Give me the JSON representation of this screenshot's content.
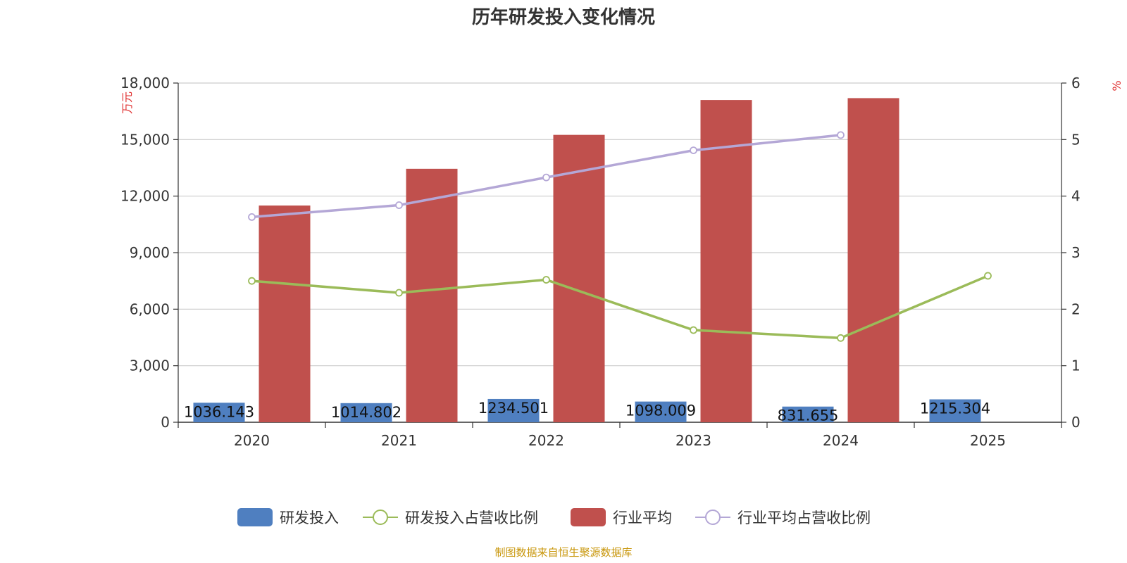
{
  "chart_data": {
    "type": "bar",
    "title": "历年研发投入变化情况",
    "categories": [
      "2020",
      "2021",
      "2022",
      "2023",
      "2024",
      "2025"
    ],
    "y_left": {
      "unit": "万元",
      "ylim": [
        0,
        18000
      ],
      "ticks": [
        "0",
        "3,000",
        "6,000",
        "9,000",
        "12,000",
        "15,000",
        "18,000"
      ]
    },
    "y_right": {
      "unit": "%",
      "ylim": [
        0,
        6
      ],
      "ticks": [
        "0",
        "1",
        "2",
        "3",
        "4",
        "5",
        "6"
      ]
    },
    "series": [
      {
        "name": "研发投入",
        "type": "bar",
        "axis": "left",
        "color": "#4f7fc0",
        "values": [
          1036.143,
          1014.802,
          1234.501,
          1098.009,
          831.655,
          1215.304
        ],
        "labels": [
          "1036.143",
          "1014.802",
          "1234.501",
          "1098.009",
          "831.655",
          "1215.304"
        ]
      },
      {
        "name": "研发投入占营收比例",
        "type": "line",
        "axis": "right",
        "color": "#9bbb59",
        "values": [
          2.5,
          2.29,
          2.52,
          1.63,
          1.49,
          2.59
        ]
      },
      {
        "name": "行业平均",
        "type": "bar",
        "axis": "left",
        "color": "#c0504d",
        "values": [
          11500,
          13450,
          15250,
          17100,
          17200,
          null
        ]
      },
      {
        "name": "行业平均占营收比例",
        "type": "line",
        "axis": "right",
        "color": "#b4a7d6",
        "values": [
          3.63,
          3.84,
          4.33,
          4.81,
          5.08,
          null
        ]
      }
    ],
    "grid": true,
    "legend": "bottom-center",
    "source": "制图数据来自恒生聚源数据库"
  }
}
